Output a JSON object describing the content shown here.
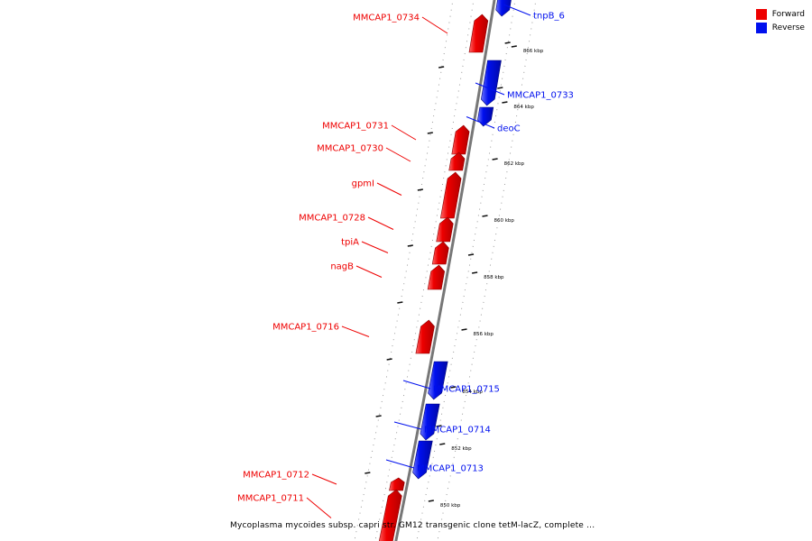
{
  "legend": {
    "forward_label": "Forward",
    "reverse_label": "Reverse",
    "forward_color": "#ee0000",
    "reverse_color": "#0010ee"
  },
  "caption": "Mycoplasma mycoides subsp. capri str. GM12 transgenic clone tetM-lacZ, complete ...",
  "ticks": [
    {
      "label": "866 kbp"
    },
    {
      "label": "864 kbp"
    },
    {
      "label": "862 kbp"
    },
    {
      "label": "860 kbp"
    },
    {
      "label": "858 kbp"
    },
    {
      "label": "856 kbp"
    },
    {
      "label": "854 kbp"
    },
    {
      "label": "852 kbp"
    },
    {
      "label": "850 kbp"
    }
  ],
  "genes": [
    {
      "name": "tnpB_6",
      "strand": "reverse"
    },
    {
      "name": "MMCAP1_0734",
      "strand": "forward"
    },
    {
      "name": "MMCAP1_0733",
      "strand": "reverse"
    },
    {
      "name": "deoC",
      "strand": "reverse"
    },
    {
      "name": "MMCAP1_0731",
      "strand": "forward"
    },
    {
      "name": "MMCAP1_0730",
      "strand": "forward"
    },
    {
      "name": "gpmI",
      "strand": "forward"
    },
    {
      "name": "MMCAP1_0728",
      "strand": "forward"
    },
    {
      "name": "tpiA",
      "strand": "forward"
    },
    {
      "name": "nagB",
      "strand": "forward"
    },
    {
      "name": "MMCAP1_0716",
      "strand": "forward"
    },
    {
      "name": "MMCAP1_0715",
      "strand": "reverse"
    },
    {
      "name": "MMCAP1_0714",
      "strand": "reverse"
    },
    {
      "name": "MMCAP1_0713",
      "strand": "reverse"
    },
    {
      "name": "MMCAP1_0712",
      "strand": "forward"
    },
    {
      "name": "MMCAP1_0711",
      "strand": "forward"
    }
  ]
}
